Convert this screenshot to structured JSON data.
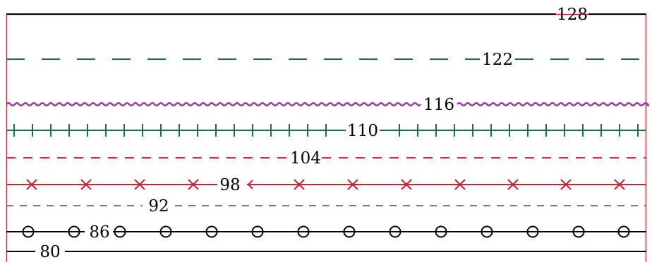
{
  "frame": {
    "color": "#d62a36"
  },
  "lines": [
    {
      "id": "line-128",
      "label": "128",
      "color": "#000000",
      "style": "solid"
    },
    {
      "id": "line-122",
      "label": "122",
      "color": "#1f6e46",
      "style": "long-dash"
    },
    {
      "id": "line-116",
      "label": "116",
      "color": "#9b3ea0",
      "style": "wavy"
    },
    {
      "id": "line-110",
      "label": "110",
      "color": "#1f6e46",
      "style": "ticked"
    },
    {
      "id": "line-104",
      "label": "104",
      "color": "#d62a36",
      "style": "dashed"
    },
    {
      "id": "line-98",
      "label": "98",
      "color": "#c0283a",
      "style": "x-markers"
    },
    {
      "id": "line-92",
      "label": "92",
      "color": "#4a4a8a",
      "style": "short-dash"
    },
    {
      "id": "line-86",
      "label": "86",
      "color": "#000000",
      "style": "circle-markers"
    },
    {
      "id": "line-80",
      "label": "80",
      "color": "#000000",
      "style": "solid"
    }
  ]
}
